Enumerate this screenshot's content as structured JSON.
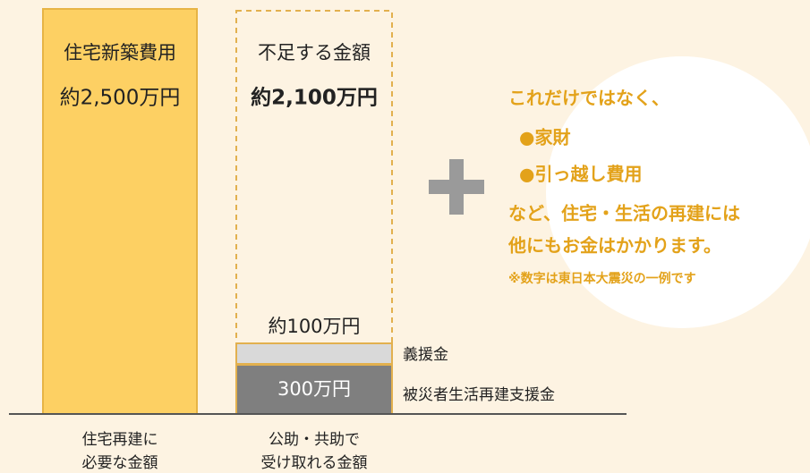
{
  "left_bar": {
    "title": "住宅新築費用",
    "amount": "約2,500万円",
    "caption": [
      "住宅再建に",
      "必要な金額"
    ]
  },
  "right_bar": {
    "title": "不足する金額",
    "amount": "約2,100万円",
    "top_amount": "約100万円",
    "bottom_amount": "300万円",
    "caption": [
      "公助・共助で",
      "受け取れる金額"
    ],
    "legend": [
      "義援金",
      "被災者生活再建支援金"
    ]
  },
  "note": {
    "lines": [
      "これだけではなく、",
      "●家財",
      "●引っ越し費用",
      "など、住宅・生活の再建には",
      "他にもお金はかかります。"
    ],
    "footnote": "※数字は東日本大震災の一例です"
  }
}
